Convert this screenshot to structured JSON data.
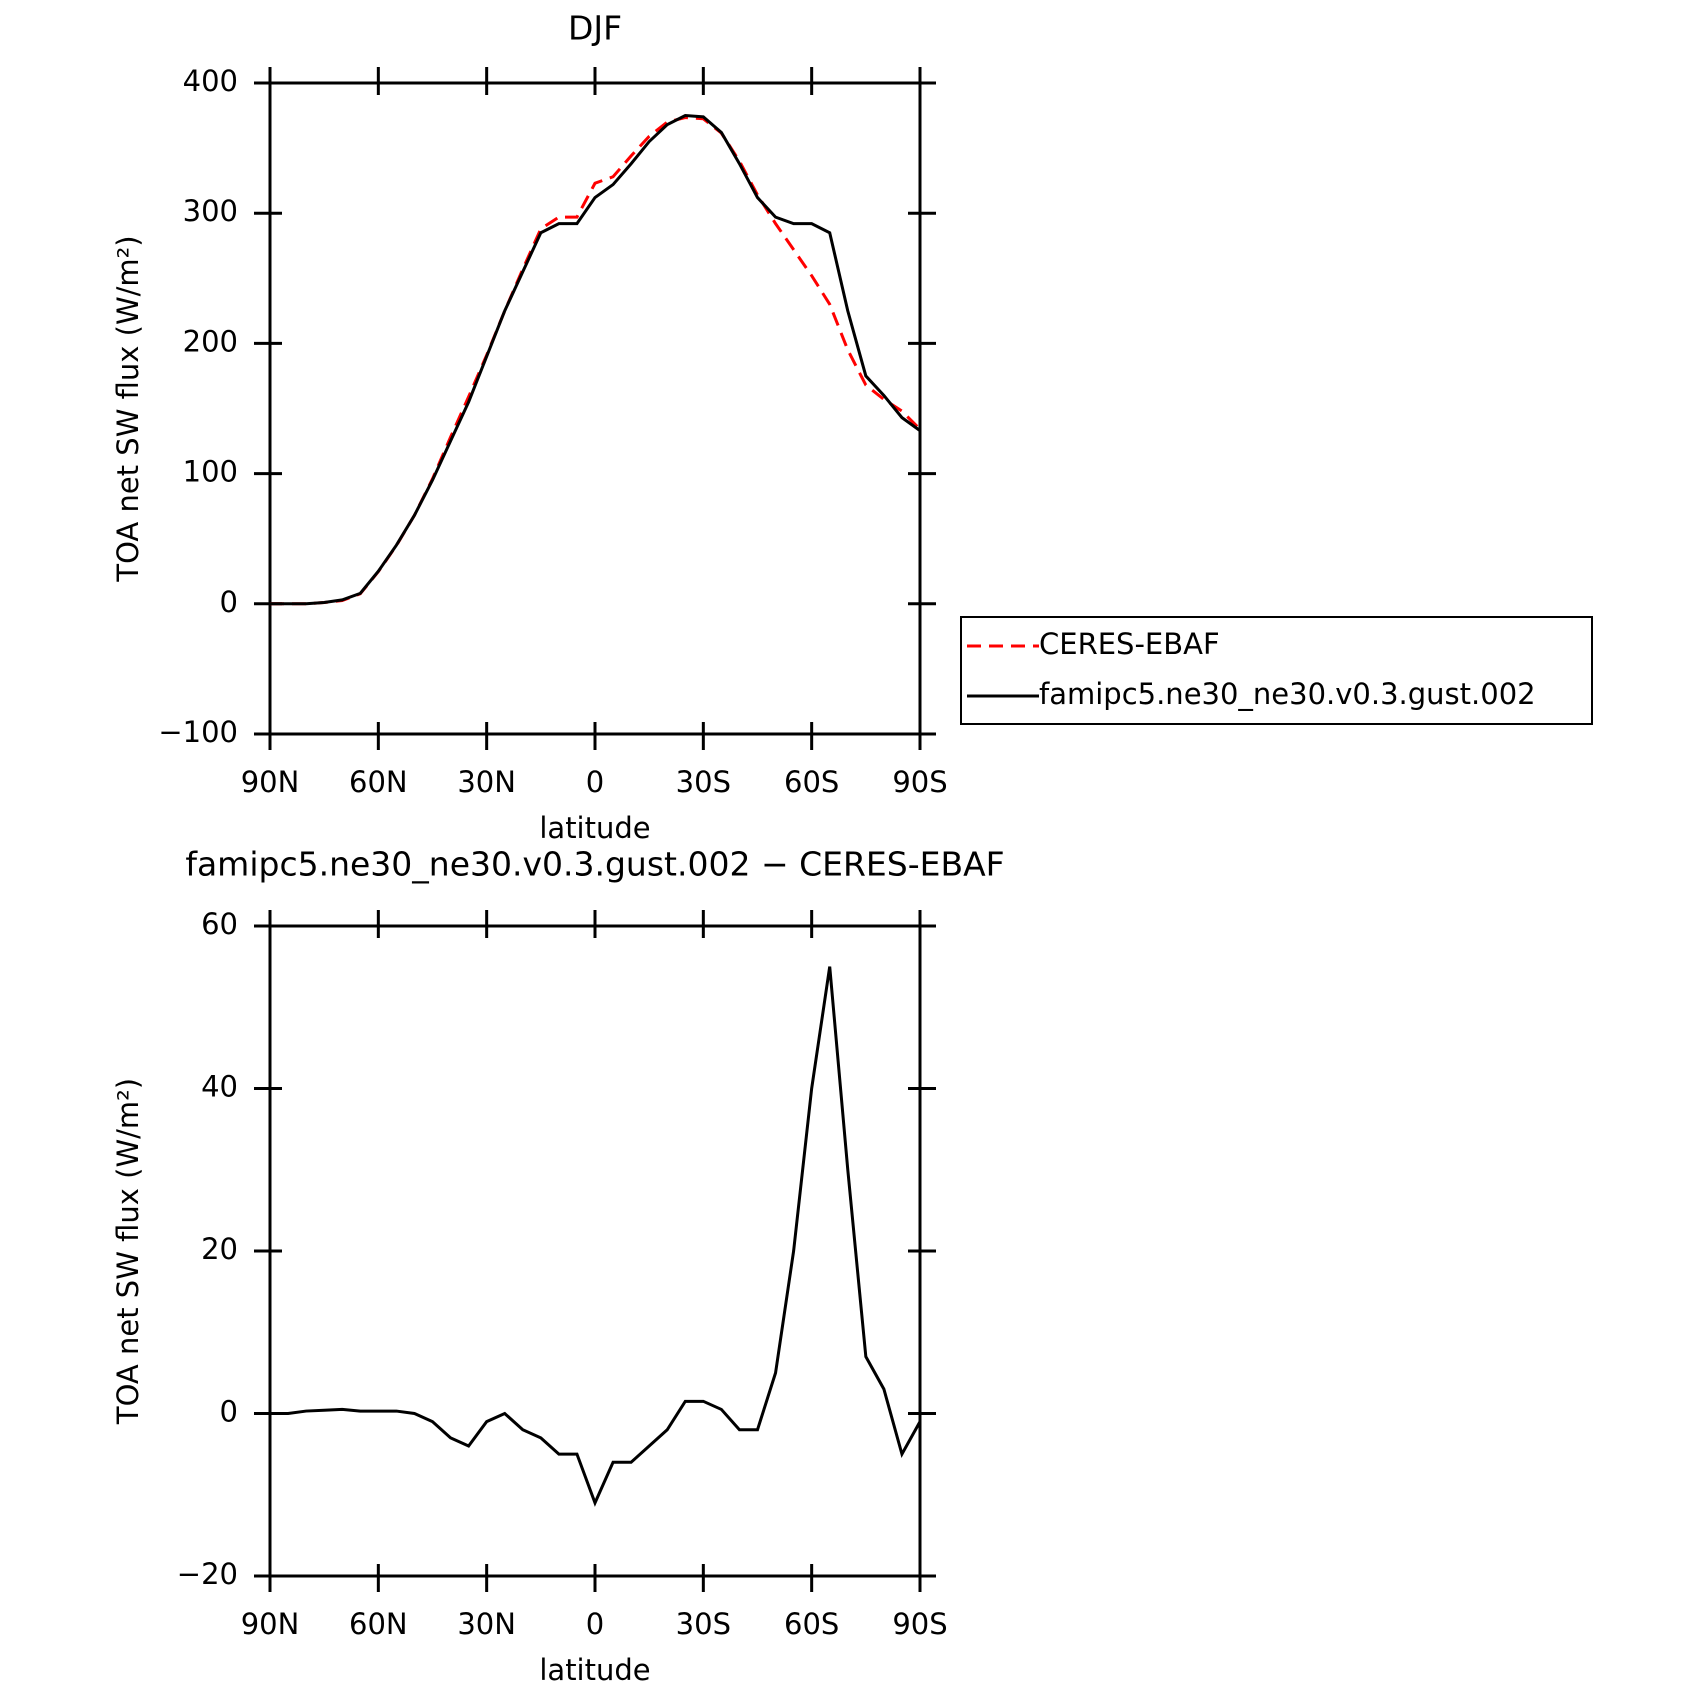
{
  "chart_data": [
    {
      "type": "line",
      "title": "DJF",
      "xlabel": "latitude",
      "ylabel": "TOA net SW flux (W/m²)",
      "x": [
        90,
        85,
        80,
        75,
        70,
        65,
        60,
        55,
        50,
        45,
        40,
        35,
        30,
        25,
        20,
        15,
        10,
        5,
        0,
        -5,
        -10,
        -15,
        -20,
        -25,
        -30,
        -35,
        -40,
        -45,
        -50,
        -55,
        -60,
        -65,
        -70,
        -75,
        -80,
        -85,
        -90
      ],
      "series": [
        {
          "name": "CERES-EBAF",
          "color": "#ff0000",
          "dash": true,
          "values": [
            0,
            0,
            0,
            1,
            2.5,
            7.7,
            24.7,
            44.7,
            68,
            96,
            128,
            159,
            191,
            225,
            257,
            288,
            297,
            297,
            323,
            328,
            344,
            359,
            370,
            373.5,
            372.5,
            361.5,
            340,
            314,
            292,
            272,
            252,
            230,
            195,
            168,
            157,
            148,
            134
          ]
        },
        {
          "name": "famipc5.ne30_ne30.v0.3.gust.002",
          "color": "#000000",
          "dash": false,
          "values": [
            0,
            0,
            0,
            1,
            3,
            8,
            25,
            45,
            68,
            95,
            125,
            155,
            190,
            225,
            255,
            285,
            292,
            292,
            312,
            322,
            338,
            355,
            368,
            375,
            374,
            362,
            338,
            312,
            297,
            292,
            292,
            285,
            225,
            175,
            160,
            143,
            133
          ]
        }
      ],
      "xlim": [
        90,
        -90
      ],
      "xticks": [
        {
          "value": 90,
          "label": "90N"
        },
        {
          "value": 60,
          "label": "60N"
        },
        {
          "value": 30,
          "label": "30N"
        },
        0,
        {
          "value": -30,
          "label": "30S"
        },
        {
          "value": -60,
          "label": "60S"
        },
        {
          "value": -90,
          "label": "90S"
        }
      ],
      "ylim": [
        -100,
        400
      ],
      "yticks": [
        {
          "value": -100,
          "label": "−100"
        },
        0,
        100,
        200,
        300,
        400
      ],
      "legend": "right"
    },
    {
      "type": "line",
      "title": "famipc5.ne30_ne30.v0.3.gust.002 − CERES-EBAF",
      "xlabel": "latitude",
      "ylabel": "TOA net SW flux (W/m²)",
      "x": [
        90,
        85,
        80,
        75,
        70,
        65,
        60,
        55,
        50,
        45,
        40,
        35,
        30,
        25,
        20,
        15,
        10,
        5,
        0,
        -5,
        -10,
        -15,
        -20,
        -25,
        -30,
        -35,
        -40,
        -45,
        -50,
        -55,
        -60,
        -65,
        -70,
        -75,
        -80,
        -85,
        -90
      ],
      "series": [
        {
          "color": "#000000",
          "dash": false,
          "values": [
            0,
            0,
            0.3,
            0.4,
            0.5,
            0.3,
            0.3,
            0.3,
            0,
            -1,
            -3,
            -4,
            -1,
            0,
            -2,
            -3,
            -5,
            -5,
            -11,
            -6,
            -6,
            -4,
            -2,
            1.5,
            1.5,
            0.5,
            -2,
            -2,
            5,
            20,
            40,
            55,
            30,
            7,
            3,
            -5,
            -1
          ]
        }
      ],
      "xlim": [
        90,
        -90
      ],
      "xticks": [
        {
          "value": 90,
          "label": "90N"
        },
        {
          "value": 60,
          "label": "60N"
        },
        {
          "value": 30,
          "label": "30N"
        },
        0,
        {
          "value": -30,
          "label": "30S"
        },
        {
          "value": -60,
          "label": "60S"
        },
        {
          "value": -90,
          "label": "90S"
        }
      ],
      "ylim": [
        -20,
        60
      ],
      "yticks": [
        {
          "value": -20,
          "label": "−20"
        },
        0,
        20,
        40,
        60
      ]
    }
  ]
}
